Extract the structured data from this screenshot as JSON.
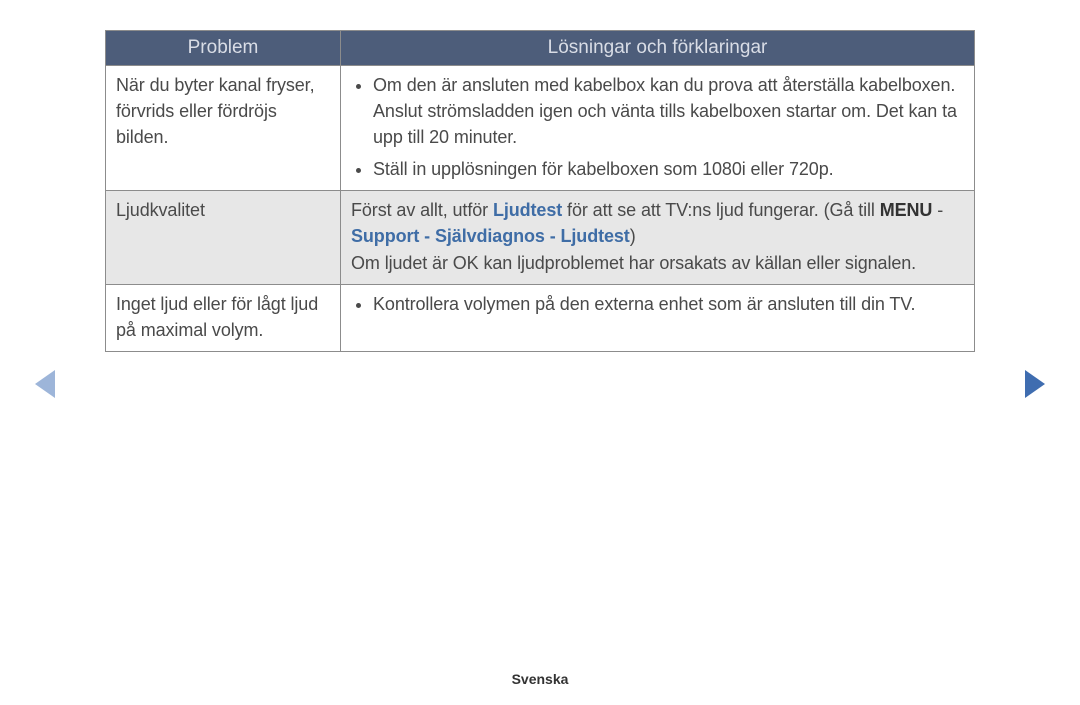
{
  "colors": {
    "header_bg": "#4d5d7a",
    "header_text": "#d9dde6",
    "border": "#8c8c8c",
    "shaded_row": "#e7e7e7",
    "emphasis": "#3f6da6",
    "body_text": "#4a4a4a",
    "nav_left": "#9db5d9",
    "nav_right": "#3f6db0"
  },
  "table": {
    "headers": {
      "problem": "Problem",
      "solution": "Lösningar och förklaringar"
    },
    "rows": [
      {
        "problem": "När du byter kanal fryser, förvrids eller fördröjs bilden.",
        "bullets": [
          "Om den är ansluten med kabelbox kan du prova att återställa kabelboxen. Anslut strömsladden igen och vänta tills kabelboxen startar om. Det kan ta upp till 20 minuter.",
          "Ställ in upplösningen för kabelboxen som 1080i eller 720p."
        ]
      },
      {
        "problem": "Ljudkvalitet",
        "shaded": true,
        "text_parts": {
          "prefix": "Först av allt, utför ",
          "emph1": "Ljudtest",
          "mid": " för att se att TV:ns ljud fungerar. (Gå till ",
          "bold1": "MENU",
          "sep": " - ",
          "emph2": "Support - Självdiagnos - Ljudtest",
          "closeparen": ")",
          "line2": "Om ljudet är OK kan ljudproblemet har orsakats av källan eller signalen."
        }
      },
      {
        "problem": "Inget ljud eller för lågt ljud på maximal volym.",
        "bullets": [
          "Kontrollera volymen på den externa enhet som är ansluten till din TV."
        ]
      }
    ]
  },
  "footer": "Svenska"
}
